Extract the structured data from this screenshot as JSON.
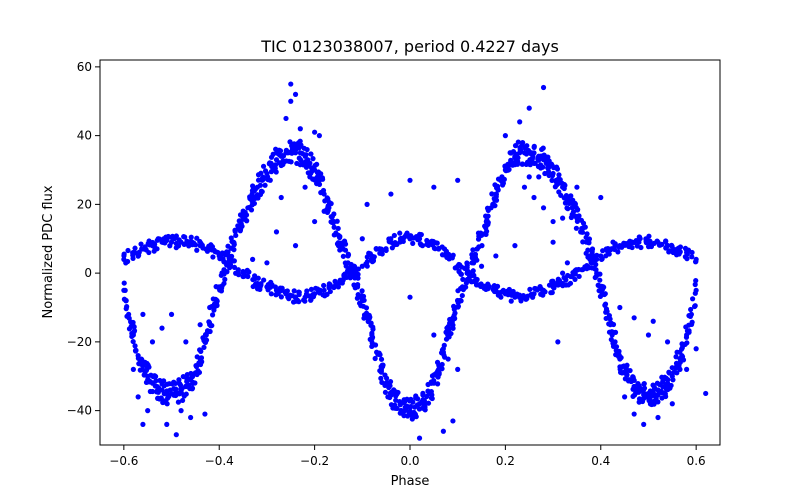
{
  "chart_data": {
    "type": "scatter",
    "title": "TIC 0123038007, period 0.4227 days",
    "xlabel": "Phase",
    "ylabel": "Normalized PDC flux",
    "xlim": [
      -0.65,
      0.65
    ],
    "ylim": [
      -50,
      62
    ],
    "xticks": [
      -0.6,
      -0.4,
      -0.2,
      0.0,
      0.2,
      0.4,
      0.6
    ],
    "xtick_labels": [
      "−0.6",
      "−0.4",
      "−0.2",
      "0.0",
      "0.2",
      "0.4",
      "0.6"
    ],
    "yticks": [
      -40,
      -20,
      0,
      20,
      40,
      60
    ],
    "ytick_labels": [
      "−40",
      "−20",
      "0",
      "20",
      "40",
      "60"
    ],
    "grid": false,
    "legend": "none",
    "point_color": "#0000ff",
    "series": [
      {
        "description": "large-amplitude curve (primary)",
        "points": [
          [
            -0.6,
            -5
          ],
          [
            -0.59,
            -12
          ],
          [
            -0.58,
            -18
          ],
          [
            -0.57,
            -24
          ],
          [
            -0.56,
            -27
          ],
          [
            -0.55,
            -30
          ],
          [
            -0.54,
            -32
          ],
          [
            -0.53,
            -33
          ],
          [
            -0.52,
            -34
          ],
          [
            -0.51,
            -35
          ],
          [
            -0.5,
            -35
          ],
          [
            -0.49,
            -35
          ],
          [
            -0.48,
            -34
          ],
          [
            -0.47,
            -33
          ],
          [
            -0.46,
            -31
          ],
          [
            -0.45,
            -29
          ],
          [
            -0.44,
            -25
          ],
          [
            -0.43,
            -20
          ],
          [
            -0.42,
            -15
          ],
          [
            -0.41,
            -9
          ],
          [
            -0.4,
            -4
          ],
          [
            -0.39,
            1
          ],
          [
            -0.38,
            5
          ],
          [
            -0.37,
            9
          ],
          [
            -0.36,
            13
          ],
          [
            -0.35,
            16
          ],
          [
            -0.34,
            19
          ],
          [
            -0.33,
            22
          ],
          [
            -0.32,
            25
          ],
          [
            -0.31,
            27
          ],
          [
            -0.3,
            29
          ],
          [
            -0.29,
            31
          ],
          [
            -0.28,
            33
          ],
          [
            -0.27,
            34
          ],
          [
            -0.26,
            35
          ],
          [
            -0.25,
            35
          ],
          [
            -0.24,
            35
          ],
          [
            -0.23,
            35
          ],
          [
            -0.22,
            34
          ],
          [
            -0.21,
            32
          ],
          [
            -0.2,
            30
          ],
          [
            -0.19,
            27
          ],
          [
            -0.18,
            23
          ],
          [
            -0.17,
            19
          ],
          [
            -0.16,
            15
          ],
          [
            -0.15,
            11
          ],
          [
            -0.14,
            7
          ],
          [
            -0.13,
            3
          ],
          [
            -0.12,
            0
          ],
          [
            -0.11,
            -4
          ],
          [
            -0.1,
            -8
          ],
          [
            -0.09,
            -13
          ],
          [
            -0.08,
            -18
          ],
          [
            -0.07,
            -23
          ],
          [
            -0.06,
            -28
          ],
          [
            -0.05,
            -32
          ],
          [
            -0.04,
            -35
          ],
          [
            -0.03,
            -37
          ],
          [
            -0.02,
            -38
          ],
          [
            -0.01,
            -39
          ],
          [
            0.0,
            -39
          ],
          [
            0.01,
            -39
          ],
          [
            0.02,
            -38
          ],
          [
            0.03,
            -37
          ],
          [
            0.04,
            -35
          ],
          [
            0.05,
            -32
          ],
          [
            0.06,
            -28
          ],
          [
            0.07,
            -23
          ],
          [
            0.08,
            -18
          ],
          [
            0.09,
            -13
          ],
          [
            0.1,
            -8
          ],
          [
            0.11,
            -4
          ],
          [
            0.12,
            0
          ],
          [
            0.13,
            3
          ],
          [
            0.14,
            7
          ],
          [
            0.15,
            11
          ],
          [
            0.16,
            15
          ],
          [
            0.17,
            19
          ],
          [
            0.18,
            23
          ],
          [
            0.19,
            27
          ],
          [
            0.2,
            30
          ],
          [
            0.21,
            32
          ],
          [
            0.22,
            34
          ],
          [
            0.23,
            35
          ],
          [
            0.24,
            35
          ],
          [
            0.25,
            35
          ],
          [
            0.26,
            35
          ],
          [
            0.27,
            34
          ],
          [
            0.28,
            33
          ],
          [
            0.29,
            31
          ],
          [
            0.3,
            29
          ],
          [
            0.31,
            27
          ],
          [
            0.32,
            25
          ],
          [
            0.33,
            22
          ],
          [
            0.34,
            19
          ],
          [
            0.35,
            16
          ],
          [
            0.36,
            13
          ],
          [
            0.37,
            9
          ],
          [
            0.38,
            5
          ],
          [
            0.39,
            1
          ],
          [
            0.4,
            -4
          ],
          [
            0.41,
            -9
          ],
          [
            0.42,
            -15
          ],
          [
            0.43,
            -20
          ],
          [
            0.44,
            -25
          ],
          [
            0.45,
            -29
          ],
          [
            0.46,
            -31
          ],
          [
            0.47,
            -33
          ],
          [
            0.48,
            -34
          ],
          [
            0.49,
            -35
          ],
          [
            0.5,
            -35
          ],
          [
            0.51,
            -35
          ],
          [
            0.52,
            -34
          ],
          [
            0.53,
            -33
          ],
          [
            0.54,
            -32
          ],
          [
            0.55,
            -30
          ],
          [
            0.56,
            -27
          ],
          [
            0.57,
            -24
          ],
          [
            0.58,
            -18
          ],
          [
            0.59,
            -12
          ],
          [
            0.6,
            -5
          ]
        ]
      },
      {
        "description": "small-amplitude curve (secondary)",
        "points": [
          [
            -0.6,
            4
          ],
          [
            -0.58,
            6
          ],
          [
            -0.56,
            7
          ],
          [
            -0.54,
            8
          ],
          [
            -0.52,
            9
          ],
          [
            -0.5,
            9
          ],
          [
            -0.48,
            9
          ],
          [
            -0.46,
            9
          ],
          [
            -0.44,
            8
          ],
          [
            -0.42,
            7
          ],
          [
            -0.4,
            5
          ],
          [
            -0.38,
            3
          ],
          [
            -0.36,
            1
          ],
          [
            -0.34,
            -1
          ],
          [
            -0.32,
            -3
          ],
          [
            -0.3,
            -4
          ],
          [
            -0.28,
            -5
          ],
          [
            -0.26,
            -6
          ],
          [
            -0.24,
            -7
          ],
          [
            -0.22,
            -7
          ],
          [
            -0.2,
            -6
          ],
          [
            -0.18,
            -5
          ],
          [
            -0.16,
            -4
          ],
          [
            -0.14,
            -2
          ],
          [
            -0.12,
            0
          ],
          [
            -0.1,
            2
          ],
          [
            -0.08,
            5
          ],
          [
            -0.06,
            7
          ],
          [
            -0.04,
            9
          ],
          [
            -0.02,
            10
          ],
          [
            0.0,
            10
          ],
          [
            0.02,
            10
          ],
          [
            0.04,
            9
          ],
          [
            0.06,
            7
          ],
          [
            0.08,
            5
          ],
          [
            0.1,
            2
          ],
          [
            0.12,
            0
          ],
          [
            0.14,
            -2
          ],
          [
            0.16,
            -4
          ],
          [
            0.18,
            -5
          ],
          [
            0.2,
            -6
          ],
          [
            0.22,
            -7
          ],
          [
            0.24,
            -7
          ],
          [
            0.26,
            -6
          ],
          [
            0.28,
            -5
          ],
          [
            0.3,
            -4
          ],
          [
            0.32,
            -3
          ],
          [
            0.34,
            -1
          ],
          [
            0.36,
            1
          ],
          [
            0.38,
            3
          ],
          [
            0.4,
            5
          ],
          [
            0.42,
            7
          ],
          [
            0.44,
            8
          ],
          [
            0.46,
            9
          ],
          [
            0.48,
            9
          ],
          [
            0.5,
            9
          ],
          [
            0.52,
            9
          ],
          [
            0.54,
            8
          ],
          [
            0.56,
            7
          ],
          [
            0.58,
            6
          ],
          [
            0.6,
            4
          ]
        ]
      },
      {
        "description": "scattered outliers",
        "points": [
          [
            -0.25,
            55
          ],
          [
            -0.24,
            52
          ],
          [
            -0.25,
            50
          ],
          [
            -0.26,
            45
          ],
          [
            -0.23,
            42
          ],
          [
            -0.2,
            41
          ],
          [
            -0.19,
            40
          ],
          [
            -0.21,
            28
          ],
          [
            -0.22,
            25
          ],
          [
            -0.27,
            22
          ],
          [
            -0.18,
            18
          ],
          [
            -0.2,
            15
          ],
          [
            -0.28,
            12
          ],
          [
            -0.24,
            8
          ],
          [
            -0.15,
            8
          ],
          [
            -0.13,
            5
          ],
          [
            -0.1,
            10
          ],
          [
            -0.3,
            3
          ],
          [
            -0.33,
            4
          ],
          [
            -0.35,
            -1
          ],
          [
            -0.39,
            -3
          ],
          [
            -0.42,
            -10
          ],
          [
            -0.44,
            -15
          ],
          [
            -0.47,
            -20
          ],
          [
            -0.5,
            -12
          ],
          [
            -0.52,
            -16
          ],
          [
            -0.54,
            -20
          ],
          [
            -0.56,
            -12
          ],
          [
            -0.58,
            -28
          ],
          [
            -0.57,
            -36
          ],
          [
            -0.55,
            -40
          ],
          [
            -0.51,
            -44
          ],
          [
            -0.48,
            -40
          ],
          [
            -0.56,
            -44
          ],
          [
            -0.49,
            -47
          ],
          [
            -0.46,
            -42
          ],
          [
            -0.43,
            -41
          ],
          [
            -0.09,
            20
          ],
          [
            -0.04,
            23
          ],
          [
            0.0,
            27
          ],
          [
            0.05,
            25
          ],
          [
            0.1,
            27
          ],
          [
            0.0,
            -7
          ],
          [
            0.05,
            -18
          ],
          [
            0.08,
            -25
          ],
          [
            0.1,
            -28
          ],
          [
            0.09,
            -43
          ],
          [
            0.07,
            -46
          ],
          [
            0.02,
            -48
          ],
          [
            0.15,
            2
          ],
          [
            0.2,
            40
          ],
          [
            0.23,
            44
          ],
          [
            0.25,
            48
          ],
          [
            0.28,
            54
          ],
          [
            0.25,
            28
          ],
          [
            0.24,
            25
          ],
          [
            0.26,
            22
          ],
          [
            0.28,
            19
          ],
          [
            0.3,
            15
          ],
          [
            0.3,
            9
          ],
          [
            0.22,
            8
          ],
          [
            0.18,
            5
          ],
          [
            0.32,
            0
          ],
          [
            0.33,
            3
          ],
          [
            0.4,
            22
          ],
          [
            0.31,
            -20
          ],
          [
            0.44,
            -10
          ],
          [
            0.47,
            -13
          ],
          [
            0.5,
            -18
          ],
          [
            0.51,
            -14
          ],
          [
            0.54,
            -20
          ],
          [
            0.56,
            -23
          ],
          [
            0.58,
            -28
          ],
          [
            0.45,
            -36
          ],
          [
            0.47,
            -41
          ],
          [
            0.49,
            -44
          ],
          [
            0.52,
            -42
          ],
          [
            0.55,
            -38
          ],
          [
            0.6,
            -22
          ],
          [
            0.62,
            -35
          ],
          [
            0.27,
            28
          ],
          [
            0.32,
            16
          ],
          [
            0.35,
            25
          ]
        ]
      }
    ]
  }
}
